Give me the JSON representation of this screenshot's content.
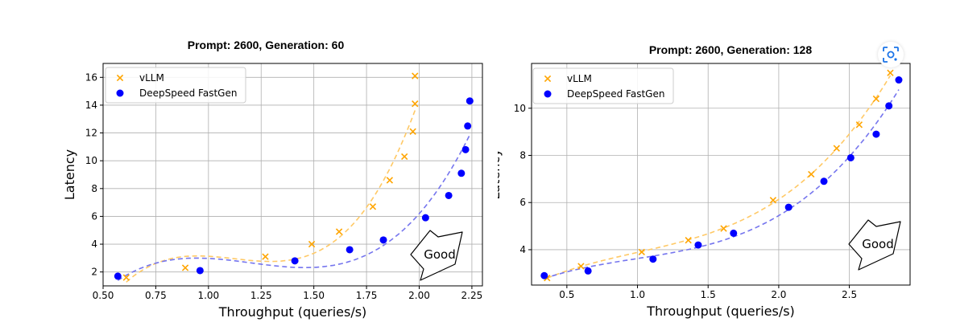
{
  "chart_data": [
    {
      "type": "scatter",
      "title": "Prompt: 2600, Generation: 60",
      "xlabel": "Throughput (queries/s)",
      "ylabel": "Latency",
      "xlim": [
        0.5,
        2.3
      ],
      "ylim": [
        1,
        17
      ],
      "xticks": [
        "0.50",
        "0.75",
        "1.00",
        "1.25",
        "1.50",
        "1.75",
        "2.00",
        "2.25"
      ],
      "yticks": [
        "2",
        "4",
        "6",
        "8",
        "10",
        "12",
        "14",
        "16"
      ],
      "grid": true,
      "legend_position": "upper-left",
      "series": [
        {
          "name": "vLLM",
          "marker": "x",
          "color": "#ffa500",
          "fit_color": "#ffc966",
          "x": [
            0.61,
            0.89,
            1.27,
            1.49,
            1.62,
            1.78,
            1.86,
            1.93,
            1.97,
            1.98,
            1.98
          ],
          "y": [
            1.6,
            2.3,
            3.1,
            4.0,
            4.9,
            6.7,
            8.6,
            10.3,
            12.1,
            14.1,
            16.1
          ]
        },
        {
          "name": "DeepSpeed FastGen",
          "marker": "o",
          "color": "#0000ff",
          "fit_color": "#7575ee",
          "x": [
            0.57,
            0.96,
            1.41,
            1.67,
            1.83,
            2.03,
            2.14,
            2.2,
            2.22,
            2.23,
            2.24
          ],
          "y": [
            1.7,
            2.1,
            2.8,
            3.6,
            4.3,
            5.9,
            7.5,
            9.1,
            10.8,
            12.5,
            14.3
          ]
        }
      ],
      "annotation": "Good"
    },
    {
      "type": "scatter",
      "title": "Prompt: 2600, Generation: 128",
      "xlabel": "Throughput (queries/s)",
      "ylabel": "Latency",
      "xlim": [
        0.25,
        2.93
      ],
      "ylim": [
        2.5,
        11.9
      ],
      "xticks": [
        "0.5",
        "1.0",
        "1.5",
        "2.0",
        "2.5"
      ],
      "yticks": [
        "4",
        "6",
        "8",
        "10"
      ],
      "grid": true,
      "legend_position": "upper-left",
      "series": [
        {
          "name": "vLLM",
          "marker": "x",
          "color": "#ffa500",
          "fit_color": "#ffc966",
          "x": [
            0.36,
            0.6,
            1.03,
            1.36,
            1.61,
            1.96,
            2.23,
            2.41,
            2.57,
            2.69,
            2.79
          ],
          "y": [
            2.8,
            3.3,
            3.9,
            4.4,
            4.9,
            6.1,
            7.2,
            8.3,
            9.3,
            10.4,
            11.5
          ]
        },
        {
          "name": "DeepSpeed FastGen",
          "marker": "o",
          "color": "#0000ff",
          "fit_color": "#7575ee",
          "x": [
            0.34,
            0.65,
            1.11,
            1.43,
            1.68,
            2.07,
            2.32,
            2.51,
            2.69,
            2.78,
            2.85
          ],
          "y": [
            2.9,
            3.1,
            3.6,
            4.2,
            4.7,
            5.8,
            6.9,
            7.9,
            8.9,
            10.1,
            11.2
          ]
        }
      ],
      "annotation": "Good"
    }
  ]
}
